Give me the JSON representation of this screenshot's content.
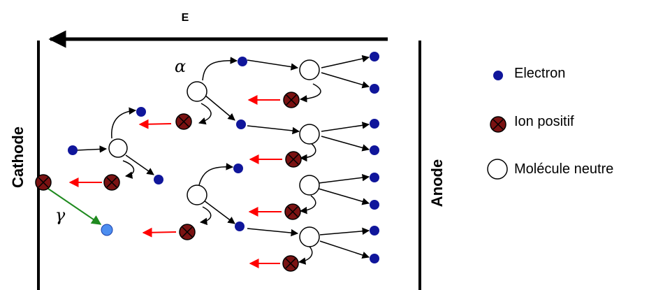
{
  "field_label": "E",
  "cathode_label": "Cathode",
  "anode_label": "Anode",
  "alpha_label": "α",
  "gamma_label": "γ",
  "legend": {
    "electron": "Electron",
    "ion": "Ion positif",
    "molecule": "Molécule neutre"
  },
  "colors": {
    "electron": "#10169b",
    "ion_fill": "#7a1212",
    "molecule_fill": "#ffffff",
    "ion_arrow": "#ff0000",
    "gamma_arrow": "#1f8a1f",
    "gamma_electron": "#4d8ef0",
    "lines": "#000000"
  }
}
